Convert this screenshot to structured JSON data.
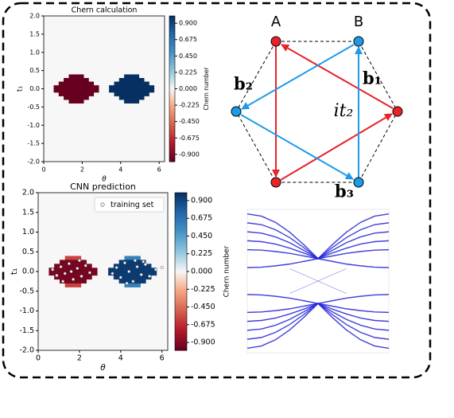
{
  "chart_data": [
    {
      "type": "heatmap",
      "title": "Chern calculation",
      "x_label": "θ",
      "y_label": "t₁",
      "colorbar_label": "Chern number",
      "colormap": "RdBu",
      "xbins": [
        0,
        0.2618,
        0.5236,
        0.7854,
        1.0472,
        1.309,
        1.5708,
        1.8326,
        2.0944,
        2.3562,
        2.618,
        2.8798,
        3.1416,
        3.4034,
        3.6652,
        3.927,
        4.1888,
        4.4506,
        4.7124,
        4.9742,
        5.236,
        5.4978,
        5.7596,
        6.0214,
        6.2832
      ],
      "ybins": [
        -2,
        -0.4,
        -0.3,
        -0.2,
        -0.1,
        0,
        0.1,
        0.2,
        0.3,
        0.4,
        2
      ],
      "z": [
        [
          0,
          0,
          0,
          0,
          0,
          0,
          0,
          0,
          0,
          0,
          0,
          0,
          0,
          0,
          0,
          0,
          0,
          0,
          0,
          0,
          0,
          0,
          0,
          0
        ],
        [
          0,
          0,
          0,
          0,
          0,
          -1,
          -1,
          -1,
          0,
          0,
          0,
          0,
          0,
          0,
          0,
          0,
          1,
          1,
          1,
          0,
          0,
          0,
          0,
          0
        ],
        [
          0,
          0,
          0,
          0,
          -1,
          -1,
          -1,
          -1,
          -1,
          0,
          0,
          0,
          0,
          0,
          0,
          1,
          1,
          1,
          1,
          1,
          0,
          0,
          0,
          0
        ],
        [
          0,
          0,
          0,
          -1,
          -1,
          -1,
          -1,
          -1,
          -1,
          -1,
          0,
          0,
          0,
          0,
          1,
          1,
          1,
          1,
          1,
          1,
          1,
          0,
          0,
          0
        ],
        [
          0,
          0,
          -1,
          -1,
          -1,
          -1,
          -1,
          -1,
          -1,
          -1,
          -1,
          0,
          0,
          1,
          1,
          1,
          1,
          1,
          1,
          1,
          1,
          1,
          0,
          0
        ],
        [
          0,
          0,
          -1,
          -1,
          -1,
          -1,
          -1,
          -1,
          -1,
          -1,
          -1,
          0,
          0,
          1,
          1,
          1,
          1,
          1,
          1,
          1,
          1,
          1,
          0,
          0
        ],
        [
          0,
          0,
          0,
          -1,
          -1,
          -1,
          -1,
          -1,
          -1,
          -1,
          0,
          0,
          0,
          0,
          1,
          1,
          1,
          1,
          1,
          1,
          1,
          0,
          0,
          0
        ],
        [
          0,
          0,
          0,
          0,
          -1,
          -1,
          -1,
          -1,
          -1,
          0,
          0,
          0,
          0,
          0,
          0,
          1,
          1,
          1,
          1,
          1,
          0,
          0,
          0,
          0
        ],
        [
          0,
          0,
          0,
          0,
          0,
          -1,
          -1,
          -1,
          0,
          0,
          0,
          0,
          0,
          0,
          0,
          0,
          1,
          1,
          1,
          0,
          0,
          0,
          0,
          0
        ],
        [
          0,
          0,
          0,
          0,
          0,
          0,
          0,
          0,
          0,
          0,
          0,
          0,
          0,
          0,
          0,
          0,
          0,
          0,
          0,
          0,
          0,
          0,
          0,
          0
        ]
      ],
      "xlim": [
        0,
        6.2832
      ],
      "ylim": [
        -2,
        2
      ],
      "xticks": [
        0,
        2,
        4,
        6
      ],
      "yticks": [
        {
          "value": 2,
          "label": "2.0"
        },
        1.5,
        {
          "value": 1,
          "label": "1.0"
        },
        0.5,
        {
          "value": 0,
          "label": "0.0"
        },
        -0.5,
        {
          "value": -1,
          "label": "-1.0"
        },
        -1.5,
        {
          "value": -2,
          "label": "-2.0"
        }
      ],
      "clim": [
        -1,
        1
      ],
      "cticks": [
        {
          "value": 0.9,
          "label": "0.900"
        },
        0.675,
        {
          "value": 0.45,
          "label": "0.450"
        },
        0.225,
        {
          "value": 0,
          "label": "0.000"
        },
        -0.225,
        {
          "value": -0.45,
          "label": "-0.450"
        },
        -0.675,
        {
          "value": -0.9,
          "label": "-0.900"
        }
      ]
    },
    {
      "type": "heatmap",
      "title": "CNN prediction",
      "x_label": "θ",
      "y_label": "t₁",
      "colorbar_label": "Chern number",
      "colormap": "RdBu",
      "xbins": [
        0,
        0.2618,
        0.5236,
        0.7854,
        1.0472,
        1.309,
        1.5708,
        1.8326,
        2.0944,
        2.3562,
        2.618,
        2.8798,
        3.1416,
        3.4034,
        3.6652,
        3.927,
        4.1888,
        4.4506,
        4.7124,
        4.9742,
        5.236,
        5.4978,
        5.7596,
        6.0214,
        6.2832
      ],
      "ybins": [
        -2,
        -0.4,
        -0.3,
        -0.2,
        -0.1,
        0,
        0.1,
        0.2,
        0.3,
        0.4,
        2
      ],
      "z": [
        [
          0,
          0,
          0,
          0,
          0,
          0,
          0,
          0,
          0,
          0,
          0,
          0,
          0,
          0,
          0,
          0,
          0,
          0,
          0,
          0,
          0,
          0,
          0,
          0
        ],
        [
          0,
          0,
          0,
          0,
          0,
          -0.6,
          -0.6,
          -0.6,
          0,
          0,
          0,
          0,
          0,
          0,
          0,
          0,
          0.6,
          0.6,
          0.6,
          0,
          0,
          0,
          0,
          0
        ],
        [
          0,
          0,
          0,
          0,
          -0.95,
          -0.95,
          -0.95,
          -0.95,
          -0.95,
          0,
          0,
          0,
          0,
          0,
          0,
          0.95,
          0.95,
          0.95,
          0.95,
          0.95,
          0,
          0,
          0,
          0
        ],
        [
          0,
          0,
          0,
          -0.95,
          -0.95,
          -0.95,
          -0.95,
          -0.95,
          -0.95,
          -0.95,
          0,
          0,
          0,
          0,
          0.95,
          0.95,
          0.95,
          0.95,
          0.95,
          0.95,
          0.95,
          0,
          0,
          0
        ],
        [
          0,
          0,
          -0.95,
          -0.95,
          -0.95,
          -0.95,
          -0.95,
          -0.95,
          -0.95,
          -0.95,
          -0.95,
          0,
          0,
          0.95,
          0.95,
          0.95,
          0.95,
          0.95,
          0.95,
          0.95,
          0.95,
          0.95,
          0,
          0
        ],
        [
          0,
          0,
          -0.95,
          -0.95,
          -0.95,
          -0.95,
          -0.95,
          -0.95,
          -0.95,
          -0.95,
          -0.95,
          0,
          0,
          0.95,
          0.95,
          0.95,
          0.95,
          0.95,
          0.95,
          0.95,
          0.95,
          0.95,
          0,
          0
        ],
        [
          0,
          0,
          0,
          -0.95,
          -0.95,
          -0.95,
          -0.95,
          -0.95,
          -0.95,
          -0.95,
          0,
          0,
          0,
          0,
          0.95,
          0.95,
          0.95,
          0.95,
          0.95,
          0.95,
          0.95,
          0,
          0,
          0
        ],
        [
          0,
          0,
          0,
          0,
          -0.95,
          -0.95,
          -0.95,
          -0.95,
          -0.95,
          0,
          0,
          0,
          0,
          0,
          0,
          0.95,
          0.95,
          0.95,
          0.95,
          0.95,
          0,
          0,
          0,
          0
        ],
        [
          0,
          0,
          0,
          0,
          0,
          -0.6,
          -0.6,
          -0.6,
          0,
          0,
          0,
          0,
          0,
          0,
          0,
          0,
          0.6,
          0.6,
          0.6,
          0,
          0,
          0,
          0,
          0
        ],
        [
          0,
          0,
          0,
          0,
          0,
          0,
          0,
          0,
          0,
          0,
          0,
          0,
          0,
          0,
          0,
          0,
          0,
          0,
          0,
          0,
          0,
          0,
          0,
          0
        ]
      ],
      "xlim": [
        0,
        6.2832
      ],
      "ylim": [
        -2,
        2
      ],
      "xticks": [
        0,
        2,
        4,
        6
      ],
      "yticks": [
        {
          "value": 2,
          "label": "2.0"
        },
        1.5,
        {
          "value": 1,
          "label": "1.0"
        },
        0.5,
        {
          "value": 0,
          "label": "0.0"
        },
        -0.5,
        {
          "value": -1,
          "label": "-1.0"
        },
        -1.5,
        {
          "value": -2,
          "label": "-2.0"
        }
      ],
      "clim": [
        -1,
        1
      ],
      "cticks": [
        {
          "value": 0.9,
          "label": "0.900"
        },
        0.675,
        {
          "value": 0.45,
          "label": "0.450"
        },
        0.225,
        {
          "value": 0,
          "label": "0.000"
        },
        -0.225,
        {
          "value": -0.45,
          "label": "-0.450"
        },
        -0.675,
        {
          "value": -0.9,
          "label": "-0.900"
        }
      ],
      "legend": "upper right",
      "scatter": {
        "name": "training set",
        "x": [
          0.7,
          0.9,
          1.1,
          1.3,
          1.5,
          1.7,
          1.9,
          2.1,
          2.3,
          2.5,
          1.2,
          1.6,
          2.0,
          3.6,
          3.8,
          4.0,
          4.2,
          4.4,
          4.6,
          4.8,
          5.0,
          5.2,
          5.4,
          5.7,
          4.3,
          4.7,
          5.1,
          6.0
        ],
        "y": [
          0.05,
          -0.1,
          0.12,
          -0.05,
          0.2,
          -0.2,
          0.08,
          -0.12,
          0.15,
          -0.03,
          -0.25,
          0.0,
          0.28,
          -0.05,
          0.1,
          -0.15,
          0.22,
          0.0,
          -0.25,
          0.12,
          -0.08,
          0.18,
          -0.12,
          0.05,
          -0.3,
          0.28,
          0.25,
          0.1
        ]
      }
    },
    {
      "type": "line",
      "color": "#1f1fd6",
      "xlim": [
        0,
        1
      ],
      "ylim": [
        -3.2,
        3.2
      ],
      "x": [
        0,
        0.1,
        0.2,
        0.3,
        0.4,
        0.5,
        0.6,
        0.7,
        0.8,
        0.9,
        1
      ],
      "series": [
        {
          "values": [
            3,
            2.9,
            2.62,
            2.18,
            1.62,
            1,
            1.62,
            2.18,
            2.62,
            2.9,
            3
          ]
        },
        {
          "values": [
            2.6,
            2.52,
            2.29,
            1.94,
            1.49,
            1,
            1.49,
            1.94,
            2.29,
            2.52,
            2.6
          ]
        },
        {
          "values": [
            2.2,
            2.14,
            1.97,
            1.71,
            1.37,
            1,
            1.37,
            1.71,
            1.97,
            2.14,
            2.2
          ]
        },
        {
          "values": [
            1.8,
            1.76,
            1.65,
            1.47,
            1.25,
            1,
            1.25,
            1.47,
            1.65,
            1.76,
            1.8
          ]
        },
        {
          "values": [
            1.4,
            1.38,
            1.32,
            1.24,
            1.12,
            1,
            1.12,
            1.24,
            1.32,
            1.38,
            1.4
          ]
        },
        {
          "values": [
            0.6,
            0.62,
            0.68,
            0.76,
            0.88,
            1,
            0.88,
            0.76,
            0.68,
            0.62,
            0.6
          ]
        },
        {
          "values": [
            -3,
            -2.9,
            -2.62,
            -2.18,
            -1.62,
            -1,
            -1.62,
            -2.18,
            -2.62,
            -2.9,
            -3
          ]
        },
        {
          "values": [
            -2.6,
            -2.52,
            -2.29,
            -1.94,
            -1.49,
            -1,
            -1.49,
            -1.94,
            -2.29,
            -2.52,
            -2.6
          ]
        },
        {
          "values": [
            -2.2,
            -2.14,
            -1.97,
            -1.71,
            -1.37,
            -1,
            -1.37,
            -1.71,
            -1.97,
            -2.14,
            -2.2
          ]
        },
        {
          "values": [
            -1.8,
            -1.76,
            -1.65,
            -1.47,
            -1.25,
            -1,
            -1.25,
            -1.47,
            -1.65,
            -1.76,
            -1.8
          ]
        },
        {
          "values": [
            -1.4,
            -1.38,
            -1.32,
            -1.24,
            -1.12,
            -1,
            -1.12,
            -1.24,
            -1.32,
            -1.38,
            -1.4
          ]
        },
        {
          "values": [
            -0.6,
            -0.62,
            -0.68,
            -0.76,
            -0.88,
            -1,
            -0.88,
            -0.76,
            -0.68,
            -0.62,
            -0.6
          ]
        },
        {
          "values": [
            null,
            null,
            null,
            0.55,
            0.28,
            0,
            -0.28,
            -0.55,
            null,
            null,
            null
          ]
        },
        {
          "values": [
            null,
            null,
            null,
            -0.55,
            -0.28,
            0,
            0.28,
            0.55,
            null,
            null,
            null
          ]
        }
      ]
    }
  ],
  "diagram": {
    "labels": [
      "A",
      "B",
      "b₁",
      "b₂",
      "b₃",
      "it₂"
    ]
  }
}
